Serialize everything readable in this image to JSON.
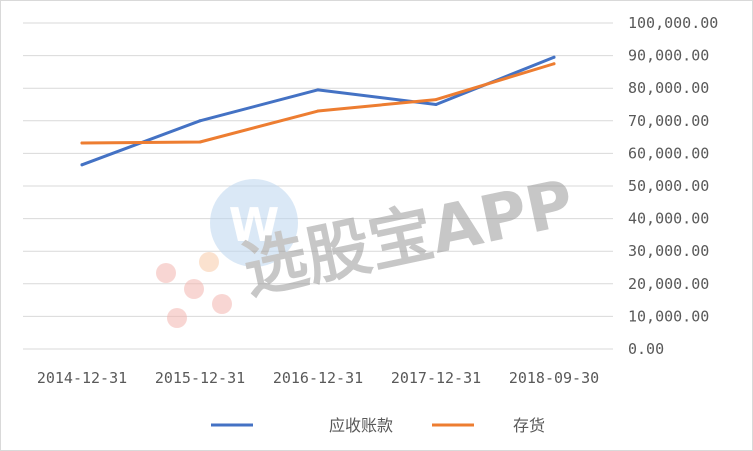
{
  "chart_data": {
    "type": "line",
    "title": "",
    "xlabel": "",
    "ylabel": "",
    "categories": [
      "2014-12-31",
      "2015-12-31",
      "2016-12-31",
      "2017-12-31",
      "2018-09-30"
    ],
    "series": [
      {
        "name": "应收账款",
        "color": "#4472c4",
        "values": [
          56500,
          70000,
          79500,
          75000,
          89500
        ]
      },
      {
        "name": "存货",
        "color": "#ed7d31",
        "values": [
          63200,
          63500,
          73000,
          76500,
          87500
        ]
      }
    ],
    "ylim": [
      0,
      100000
    ],
    "yticks": [
      "0.00",
      "10,000.00",
      "20,000.00",
      "30,000.00",
      "40,000.00",
      "50,000.00",
      "60,000.00",
      "70,000.00",
      "80,000.00",
      "90,000.00",
      "100,000.00"
    ],
    "y_axis_side": "right",
    "grid": true,
    "legend": "bottom"
  },
  "watermark": {
    "text": "选股宝APP",
    "logo_letter": "W"
  }
}
